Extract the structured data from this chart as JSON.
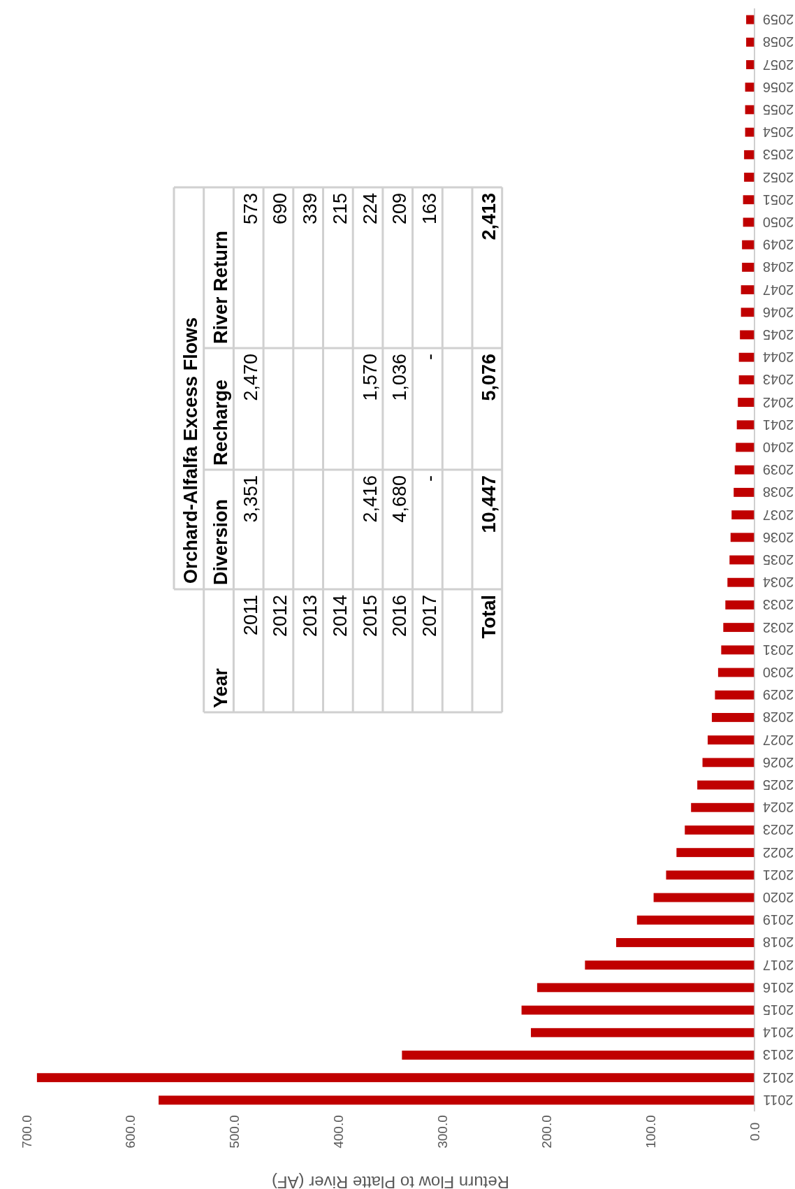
{
  "chart_data": {
    "type": "bar",
    "orientation": "horizontal",
    "xlabel": "Return Flow to Platte River (AF)",
    "color": "#c00000",
    "categories": [
      "2059",
      "2058",
      "2057",
      "2056",
      "2055",
      "2054",
      "2053",
      "2052",
      "2051",
      "2050",
      "2049",
      "2048",
      "2047",
      "2046",
      "2045",
      "2044",
      "2043",
      "2042",
      "2041",
      "2040",
      "2039",
      "2038",
      "2037",
      "2036",
      "2035",
      "2034",
      "2033",
      "2032",
      "2031",
      "2030",
      "2029",
      "2028",
      "2027",
      "2026",
      "2025",
      "2024",
      "2023",
      "2022",
      "2021",
      "2020",
      "2019",
      "2018",
      "2017",
      "2016",
      "2015",
      "2014",
      "2013",
      "2012",
      "2011"
    ],
    "values": [
      8,
      8,
      8,
      9,
      9,
      9,
      10,
      10,
      11,
      11,
      12,
      12,
      13,
      13,
      14,
      15,
      15,
      16,
      17,
      18,
      19,
      20,
      22,
      23,
      24,
      26,
      28,
      30,
      32,
      35,
      38,
      41,
      45,
      50,
      55,
      61,
      67,
      75,
      85,
      97,
      113,
      133,
      163,
      209,
      224,
      215,
      339,
      690,
      573
    ],
    "xlim": [
      700,
      0
    ],
    "xticks": [
      {
        "value": 0,
        "label": "0.0"
      },
      {
        "value": 100,
        "label": "100.0"
      },
      {
        "value": 200,
        "label": "200.0"
      },
      {
        "value": 300,
        "label": "300.0"
      },
      {
        "value": 400,
        "label": "400.0"
      },
      {
        "value": 500,
        "label": "500.0"
      },
      {
        "value": 600,
        "label": "600.0"
      },
      {
        "value": 700,
        "label": "700.0"
      }
    ],
    "annotations": [
      "Orchard-Alfalfa Excess Flows",
      "Year",
      "Diversion",
      "Recharge",
      "River Return",
      "2011",
      "3,351",
      "2,470",
      "573",
      "2012",
      "690",
      "2013",
      "339",
      "2014",
      "215",
      "2015",
      "2,416",
      "1,570",
      "224",
      "2016",
      "4,680",
      "1,036",
      "209",
      "2017",
      "-",
      "-",
      "163",
      "Total",
      "10,447",
      "5,076",
      "2,413"
    ]
  }
}
